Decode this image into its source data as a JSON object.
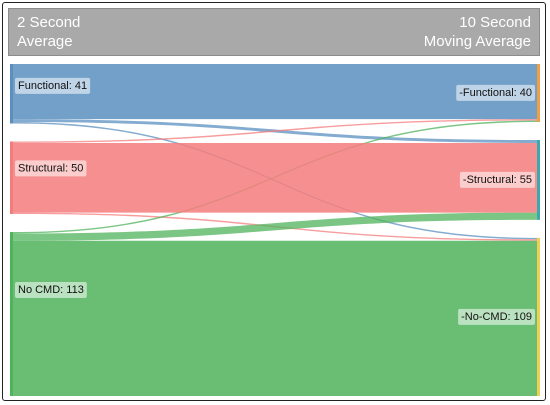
{
  "header": {
    "left_title": "2 Second\nAverage",
    "right_title": "10 Second\nMoving Average"
  },
  "colors": {
    "functional": "#5b8fc0",
    "structural": "#f47c7c",
    "nocmd": "#4fb35b",
    "right_bar_functional": "#f0a040",
    "right_bar_structural": "#3aaab0",
    "right_bar_nocmd": "#f0d050"
  },
  "chart_data": {
    "type": "sankey",
    "left_nodes": [
      {
        "id": "functional",
        "label": "Functional: 41",
        "value": 41
      },
      {
        "id": "structural",
        "label": "Structural: 50",
        "value": 50
      },
      {
        "id": "nocmd",
        "label": "No CMD: 113",
        "value": 113
      }
    ],
    "right_nodes": [
      {
        "id": "functional",
        "label": "-Functional: 40",
        "value": 40
      },
      {
        "id": "structural",
        "label": "-Structural: 55",
        "value": 55
      },
      {
        "id": "nocmd",
        "label": "-No-CMD: 109",
        "value": 109
      }
    ],
    "links": [
      {
        "source": "functional",
        "target": "functional",
        "value": 38
      },
      {
        "source": "functional",
        "target": "structural",
        "value": 2
      },
      {
        "source": "functional",
        "target": "nocmd",
        "value": 1
      },
      {
        "source": "structural",
        "target": "functional",
        "value": 1
      },
      {
        "source": "structural",
        "target": "structural",
        "value": 48
      },
      {
        "source": "structural",
        "target": "nocmd",
        "value": 1
      },
      {
        "source": "nocmd",
        "target": "functional",
        "value": 1
      },
      {
        "source": "nocmd",
        "target": "structural",
        "value": 5
      },
      {
        "source": "nocmd",
        "target": "nocmd",
        "value": 107
      }
    ]
  }
}
